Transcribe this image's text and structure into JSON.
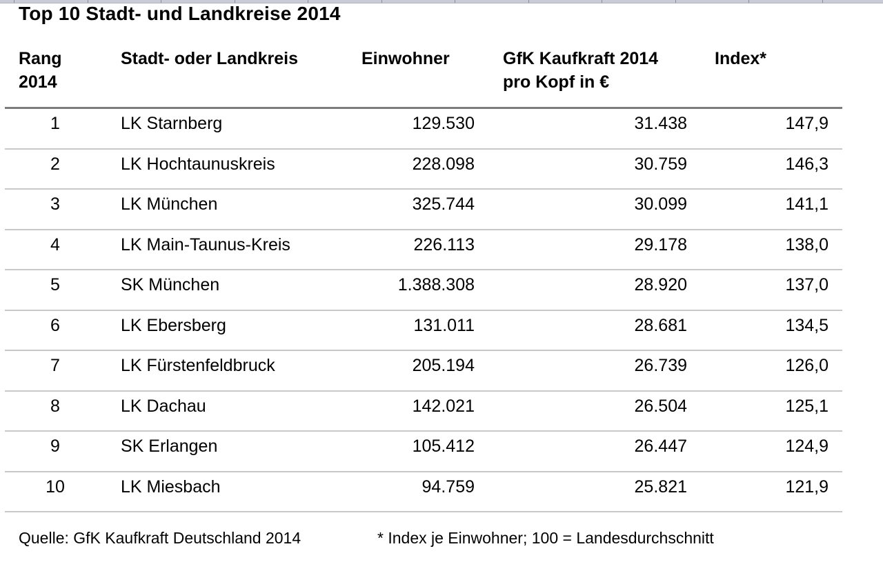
{
  "title": "Top 10 Stadt- und Landkreise 2014",
  "headers": {
    "rank": [
      "Rang",
      "2014"
    ],
    "name": "Stadt- oder Landkreis",
    "population": "Einwohner",
    "purchasing_power": [
      "GfK Kaufkraft 2014",
      "pro Kopf in €"
    ],
    "index": "Index*"
  },
  "rows": [
    {
      "rank": "1",
      "name": "LK Starnberg",
      "population": "129.530",
      "purchasing_power": "31.438",
      "index": "147,9"
    },
    {
      "rank": "2",
      "name": "LK Hochtaunuskreis",
      "population": "228.098",
      "purchasing_power": "30.759",
      "index": "146,3"
    },
    {
      "rank": "3",
      "name": "LK München",
      "population": "325.744",
      "purchasing_power": "30.099",
      "index": "141,1"
    },
    {
      "rank": "4",
      "name": "LK Main-Taunus-Kreis",
      "population": "226.113",
      "purchasing_power": "29.178",
      "index": "138,0"
    },
    {
      "rank": "5",
      "name": "SK München",
      "population": "1.388.308",
      "purchasing_power": "28.920",
      "index": "137,0"
    },
    {
      "rank": "6",
      "name": "LK Ebersberg",
      "population": "131.011",
      "purchasing_power": "28.681",
      "index": "134,5"
    },
    {
      "rank": "7",
      "name": "LK Fürstenfeldbruck",
      "population": "205.194",
      "purchasing_power": "26.739",
      "index": "126,0"
    },
    {
      "rank": "8",
      "name": "LK Dachau",
      "population": "142.021",
      "purchasing_power": "26.504",
      "index": "125,1"
    },
    {
      "rank": "9",
      "name": "SK Erlangen",
      "population": "105.412",
      "purchasing_power": "26.447",
      "index": "124,9"
    },
    {
      "rank": "10",
      "name": "LK Miesbach",
      "population": "94.759",
      "purchasing_power": "25.821",
      "index": "121,9"
    }
  ],
  "footer": {
    "source": "Quelle: GfK Kaufkraft Deutschland 2014",
    "note": "* Index je Einwohner; 100 = Landesdurchschnitt"
  }
}
